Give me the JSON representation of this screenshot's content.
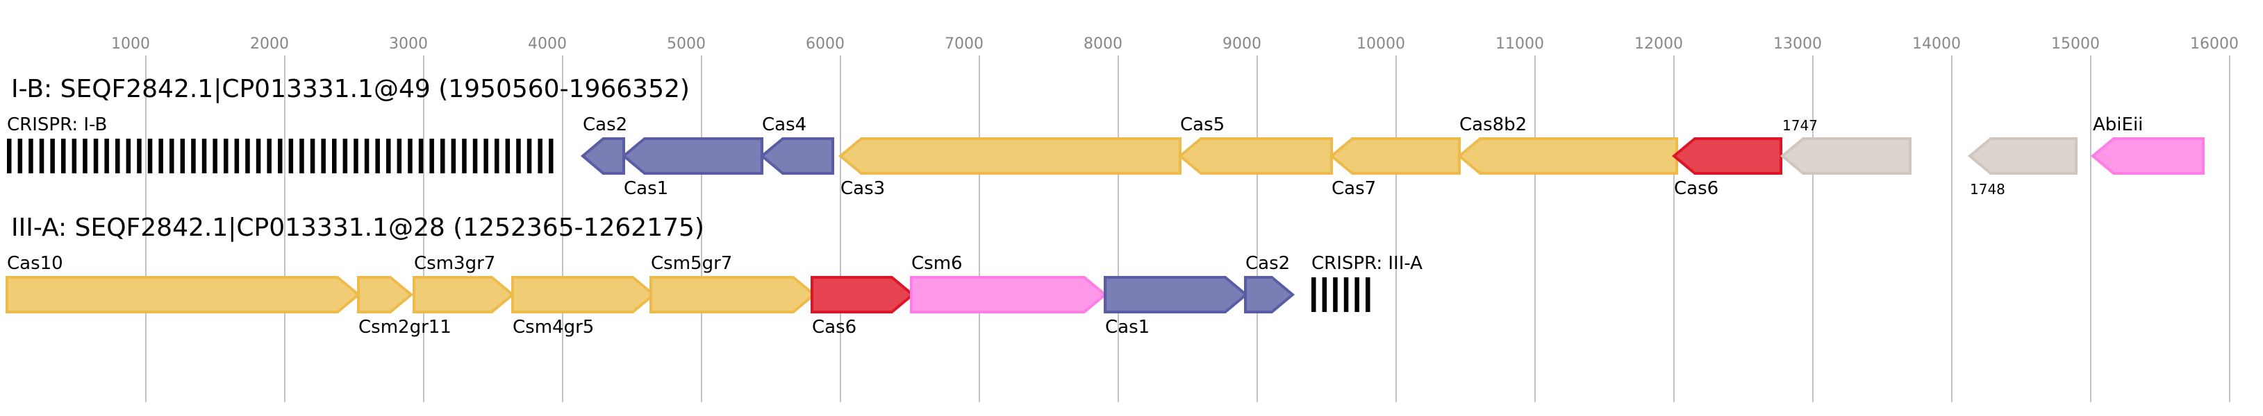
{
  "axis": {
    "ticks": [
      1000,
      2000,
      3000,
      4000,
      5000,
      6000,
      7000,
      8000,
      9000,
      10000,
      11000,
      12000,
      13000,
      14000,
      15000,
      16000
    ]
  },
  "colors": {
    "yellow": {
      "fill": "#f0cc74",
      "stroke": "#edbb4b"
    },
    "blue": {
      "fill": "#7b7db5",
      "stroke": "#5a5ca6"
    },
    "red": {
      "fill": "#e4434f",
      "stroke": "#dc1626"
    },
    "pink": {
      "fill": "#fd98e8",
      "stroke": "#fe7ee6"
    },
    "grey": {
      "fill": "#dbd4cf",
      "stroke": "#d0c6be"
    },
    "crispr": "#000000"
  },
  "loci": [
    {
      "title": "I-B: SEQF2842.1|CP013331.1@49 (1950560-1966352)",
      "features": [
        {
          "name": "CRISPR: I-B",
          "type": "crispr",
          "start": 0,
          "end": 3940,
          "label_pos": "above"
        },
        {
          "name": "Cas2",
          "strand": "-",
          "start": 4145,
          "end": 4440,
          "color": "blue",
          "label_pos": "above"
        },
        {
          "name": "Cas1",
          "strand": "-",
          "start": 4440,
          "end": 5435,
          "color": "blue",
          "label_pos": "below"
        },
        {
          "name": "Cas4",
          "strand": "-",
          "start": 5435,
          "end": 5945,
          "color": "blue",
          "label_pos": "above"
        },
        {
          "name": "Cas3",
          "strand": "-",
          "start": 6000,
          "end": 8445,
          "color": "yellow",
          "label_pos": "below"
        },
        {
          "name": "Cas5",
          "strand": "-",
          "start": 8445,
          "end": 9535,
          "color": "yellow",
          "label_pos": "above"
        },
        {
          "name": "Cas7",
          "strand": "-",
          "start": 9535,
          "end": 10455,
          "color": "yellow",
          "label_pos": "below"
        },
        {
          "name": "Cas8b2",
          "strand": "-",
          "start": 10455,
          "end": 12020,
          "color": "yellow",
          "label_pos": "above"
        },
        {
          "name": "Cas6",
          "strand": "-",
          "start": 12000,
          "end": 12770,
          "color": "red",
          "label_pos": "below"
        },
        {
          "name": "1747",
          "strand": "-",
          "start": 12780,
          "end": 13700,
          "color": "grey",
          "label_pos": "above",
          "small": true
        },
        {
          "name": "1748",
          "strand": "-",
          "start": 14130,
          "end": 14895,
          "color": "grey",
          "label_pos": "below",
          "small": true
        },
        {
          "name": "AbiEii",
          "strand": "-",
          "start": 15015,
          "end": 15810,
          "color": "pink",
          "label_pos": "above"
        }
      ]
    },
    {
      "title": "III-A: SEQF2842.1|CP013331.1@28 (1252365-1262175)",
      "features": [
        {
          "name": "Cas10",
          "strand": "+",
          "start": 0,
          "end": 2530,
          "color": "yellow",
          "label_pos": "above"
        },
        {
          "name": "Csm2gr11",
          "strand": "+",
          "start": 2530,
          "end": 2910,
          "color": "yellow",
          "label_pos": "below"
        },
        {
          "name": "Csm3gr7",
          "strand": "+",
          "start": 2930,
          "end": 3640,
          "color": "yellow",
          "label_pos": "above"
        },
        {
          "name": "Csm4gr5",
          "strand": "+",
          "start": 3640,
          "end": 4655,
          "color": "yellow",
          "label_pos": "below"
        },
        {
          "name": "Csm5gr7",
          "strand": "+",
          "start": 4635,
          "end": 5810,
          "color": "yellow",
          "label_pos": "above"
        },
        {
          "name": "Cas6",
          "strand": "+",
          "start": 5795,
          "end": 6520,
          "color": "red",
          "label_pos": "below"
        },
        {
          "name": "Csm6",
          "strand": "+",
          "start": 6510,
          "end": 7905,
          "color": "pink",
          "label_pos": "above"
        },
        {
          "name": "Cas1",
          "strand": "+",
          "start": 7905,
          "end": 8920,
          "color": "blue",
          "label_pos": "below"
        },
        {
          "name": "Cas2",
          "strand": "+",
          "start": 8915,
          "end": 9255,
          "color": "blue",
          "label_pos": "above"
        },
        {
          "name": "CRISPR: III-A",
          "type": "crispr",
          "start": 9390,
          "end": 9810,
          "label_pos": "above"
        }
      ]
    }
  ]
}
